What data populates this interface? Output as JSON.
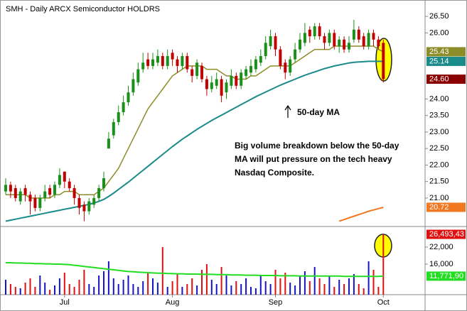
{
  "chart_data": {
    "type": "candlestick",
    "title": "SMH - Daily  ARCX  Semiconductor HOLDRS",
    "categories": [
      null,
      null,
      null,
      null,
      null,
      null,
      null,
      null,
      null,
      null,
      null,
      null,
      "Jul",
      null,
      null,
      null,
      null,
      null,
      null,
      null,
      null,
      null,
      null,
      null,
      null,
      null,
      null,
      null,
      null,
      null,
      null,
      null,
      null,
      null,
      "Aug",
      null,
      null,
      null,
      null,
      null,
      null,
      null,
      null,
      null,
      null,
      null,
      null,
      null,
      null,
      null,
      null,
      null,
      null,
      null,
      null,
      "Sep",
      null,
      null,
      null,
      null,
      null,
      null,
      null,
      null,
      null,
      null,
      null,
      null,
      null,
      null,
      null,
      null,
      null,
      null,
      null,
      null,
      null,
      "Oct"
    ],
    "price": {
      "open": [
        21.2,
        21.4,
        21.3,
        20.9,
        21.3,
        21.1,
        21.0,
        20.7,
        21.0,
        21.3,
        21.1,
        21.4,
        21.8,
        21.5,
        21.3,
        21.0,
        20.8,
        20.6,
        20.8,
        21.0,
        21.3,
        22.5,
        22.9,
        23.3,
        23.6,
        23.9,
        24.2,
        24.5,
        24.9,
        25.2,
        25.0,
        25.1,
        25.3,
        25.0,
        25.4,
        25.2,
        25.0,
        25.3,
        24.9,
        24.7,
        25.0,
        24.6,
        24.3,
        24.4,
        24.6,
        24.2,
        24.4,
        24.7,
        24.4,
        24.7,
        24.8,
        24.9,
        25.1,
        25.3,
        25.6,
        25.9,
        25.5,
        25.1,
        24.8,
        25.2,
        25.5,
        25.7,
        26.1,
        25.9,
        26.2,
        25.9,
        25.7,
        26.0,
        25.6,
        25.8,
        25.5,
        25.8,
        26.1,
        25.9,
        25.6,
        26.0,
        25.8,
        25.7
      ],
      "high": [
        21.6,
        21.5,
        21.4,
        21.3,
        21.4,
        21.2,
        21.1,
        21.1,
        21.4,
        21.4,
        21.5,
        21.9,
        21.8,
        21.6,
        21.4,
        21.1,
        20.9,
        21.0,
        21.1,
        21.4,
        21.8,
        23.0,
        23.4,
        23.8,
        24.1,
        24.4,
        24.8,
        25.1,
        25.4,
        25.4,
        25.4,
        25.5,
        25.4,
        25.5,
        25.5,
        25.3,
        25.4,
        25.4,
        25.0,
        25.2,
        25.1,
        24.7,
        24.7,
        24.8,
        24.7,
        24.6,
        24.9,
        24.8,
        24.9,
        25.0,
        25.2,
        25.3,
        25.5,
        25.9,
        26.1,
        26.0,
        25.6,
        25.2,
        25.3,
        25.7,
        26.0,
        26.3,
        26.2,
        26.3,
        26.3,
        26.0,
        26.1,
        26.1,
        25.9,
        25.9,
        25.9,
        26.4,
        26.2,
        26.0,
        26.1,
        26.1,
        25.9,
        25.8
      ],
      "low": [
        21.1,
        21.0,
        20.9,
        20.8,
        20.9,
        20.5,
        20.6,
        20.6,
        20.9,
        21.0,
        21.0,
        21.3,
        21.3,
        21.2,
        20.8,
        20.5,
        20.3,
        20.5,
        20.7,
        20.9,
        21.2,
        22.5,
        22.8,
        23.2,
        23.5,
        23.8,
        24.1,
        24.4,
        24.8,
        24.9,
        24.9,
        25.0,
        24.9,
        24.9,
        25.0,
        24.8,
        24.9,
        24.8,
        24.5,
        24.6,
        24.5,
        24.1,
        24.2,
        24.3,
        23.9,
        24.0,
        24.3,
        24.3,
        24.3,
        24.6,
        24.7,
        24.8,
        25.0,
        25.2,
        25.5,
        25.3,
        24.9,
        24.6,
        24.7,
        25.1,
        25.4,
        25.6,
        25.7,
        25.8,
        25.8,
        25.5,
        25.6,
        25.5,
        25.4,
        25.4,
        25.4,
        25.7,
        25.7,
        25.5,
        25.5,
        25.6,
        25.5,
        24.5
      ],
      "close": [
        21.4,
        21.2,
        21.0,
        21.2,
        21.1,
        20.9,
        20.7,
        21.0,
        21.2,
        21.1,
        21.4,
        21.7,
        21.5,
        21.3,
        21.0,
        20.7,
        20.6,
        20.9,
        21.0,
        21.3,
        21.6,
        22.8,
        23.3,
        23.6,
        23.9,
        24.2,
        24.6,
        24.9,
        25.1,
        25.0,
        25.2,
        25.3,
        25.0,
        25.3,
        25.2,
        25.0,
        25.3,
        24.9,
        24.7,
        25.1,
        24.6,
        24.3,
        24.5,
        24.6,
        24.1,
        24.5,
        24.7,
        24.4,
        24.8,
        24.9,
        25.0,
        25.2,
        25.3,
        25.7,
        25.9,
        25.5,
        25.0,
        24.8,
        25.2,
        25.5,
        25.8,
        26.0,
        25.9,
        26.2,
        25.9,
        25.7,
        26.0,
        25.6,
        25.8,
        25.5,
        25.7,
        26.1,
        25.8,
        25.6,
        26.0,
        25.8,
        25.6,
        24.6
      ],
      "up_color": "#1a8f1a",
      "down_color": "#c00000",
      "last_label": "24.60",
      "last_label_color": "#8b0000"
    },
    "lines": [
      {
        "color": "#8c8c28",
        "values": [
          21.1,
          21.1,
          21.1,
          21.1,
          21.1,
          21.0,
          21.0,
          21.0,
          21.0,
          21.0,
          21.1,
          21.1,
          21.2,
          21.2,
          21.2,
          21.1,
          21.1,
          21.1,
          21.1,
          21.2,
          21.3,
          21.5,
          21.7,
          21.9,
          22.2,
          22.5,
          22.8,
          23.1,
          23.4,
          23.7,
          23.9,
          24.1,
          24.3,
          24.5,
          24.7,
          24.8,
          24.9,
          25.0,
          25.0,
          25.0,
          25.0,
          24.9,
          24.9,
          24.9,
          24.8,
          24.7,
          24.7,
          24.6,
          24.6,
          24.6,
          24.7,
          24.7,
          24.8,
          24.9,
          25.0,
          25.0,
          25.0,
          25.0,
          25.0,
          25.1,
          25.2,
          25.3,
          25.4,
          25.5,
          25.5,
          25.5,
          25.5,
          25.6,
          25.6,
          25.6,
          25.6,
          25.6,
          25.6,
          25.6,
          25.6,
          25.6,
          25.5,
          25.43
        ]
      },
      {
        "color": "#1a8a8a",
        "values": [
          20.3,
          20.33,
          20.36,
          20.39,
          20.42,
          20.45,
          20.48,
          20.51,
          20.54,
          20.57,
          20.6,
          20.63,
          20.66,
          20.69,
          20.72,
          20.75,
          20.78,
          20.81,
          20.85,
          20.9,
          20.96,
          21.05,
          21.15,
          21.26,
          21.37,
          21.48,
          21.6,
          21.72,
          21.84,
          21.96,
          22.08,
          22.2,
          22.32,
          22.44,
          22.56,
          22.67,
          22.78,
          22.88,
          22.98,
          23.08,
          23.17,
          23.26,
          23.35,
          23.43,
          23.51,
          23.59,
          23.67,
          23.75,
          23.83,
          23.91,
          23.99,
          24.07,
          24.14,
          24.21,
          24.28,
          24.35,
          24.42,
          24.48,
          24.54,
          24.6,
          24.66,
          24.72,
          24.77,
          24.82,
          24.87,
          24.92,
          24.96,
          25.0,
          25.03,
          25.06,
          25.09,
          25.11,
          25.12,
          25.13,
          25.14,
          25.14,
          25.14,
          25.14
        ]
      },
      {
        "color": "#f07820",
        "values": [
          null,
          null,
          null,
          null,
          null,
          null,
          null,
          null,
          null,
          null,
          null,
          null,
          null,
          null,
          null,
          null,
          null,
          null,
          null,
          null,
          null,
          null,
          null,
          null,
          null,
          null,
          null,
          null,
          null,
          null,
          null,
          null,
          null,
          null,
          null,
          null,
          null,
          null,
          null,
          null,
          null,
          null,
          null,
          null,
          null,
          null,
          null,
          null,
          null,
          null,
          null,
          null,
          null,
          null,
          null,
          null,
          null,
          null,
          null,
          null,
          null,
          null,
          null,
          null,
          null,
          null,
          null,
          null,
          20.3,
          20.35,
          20.4,
          20.45,
          20.5,
          20.55,
          20.6,
          20.64,
          20.68,
          20.72
        ]
      }
    ],
    "ylim": [
      20.16,
      26.89
    ],
    "yticks": [
      {
        "value": 21,
        "label": "21.00"
      },
      {
        "value": 21.5,
        "label": "21.50"
      },
      {
        "value": 22,
        "label": "22.00"
      },
      {
        "value": 22.5,
        "label": "22.50"
      },
      {
        "value": 23,
        "label": "23.00"
      },
      {
        "value": 23.5,
        "label": "23.50"
      },
      {
        "value": 24,
        "label": "24.00"
      },
      {
        "value": 26,
        "label": "26.00"
      },
      {
        "value": 26.5,
        "label": "26.50"
      }
    ],
    "volume": {
      "values": [
        10500,
        9000,
        8000,
        7500,
        9500,
        11000,
        8000,
        12000,
        9500,
        7000,
        8500,
        11000,
        13000,
        9000,
        8000,
        10500,
        14000,
        9000,
        8000,
        12000,
        13500,
        17000,
        11000,
        9000,
        10500,
        12000,
        9000,
        8000,
        10000,
        13000,
        11000,
        9500,
        22000,
        8000,
        10000,
        12500,
        8000,
        9000,
        11000,
        8500,
        14000,
        16000,
        10500,
        9000,
        15000,
        12000,
        8500,
        10000,
        9000,
        11000,
        8000,
        7500,
        12000,
        10000,
        9000,
        14000,
        11000,
        13000,
        9500,
        8500,
        12000,
        13500,
        10000,
        15000,
        11000,
        9000,
        12000,
        8000,
        10500,
        9000,
        11000,
        12500,
        9000,
        7500,
        17000,
        14000,
        8000,
        26493.43
      ],
      "up_color": "#1515c8",
      "down_color": "#e01010",
      "last_label": "26,493,43",
      "ylim": [
        5250,
        28500
      ],
      "yticks": [
        {
          "value": 16000,
          "label": "16,000"
        },
        {
          "value": 22000,
          "label": "22,000"
        }
      ],
      "ma": {
        "color": "#22dd22",
        "last_label": "11,771,90",
        "values": [
          16500,
          16500,
          16400,
          16400,
          16300,
          16300,
          16200,
          16200,
          16100,
          16100,
          16000,
          16000,
          15900,
          15800,
          15600,
          15400,
          15200,
          15000,
          14800,
          14600,
          14400,
          14200,
          14000,
          13800,
          13600,
          13400,
          13300,
          13200,
          13100,
          13000,
          12900,
          12800,
          12800,
          12700,
          12700,
          12600,
          12600,
          12500,
          12500,
          12500,
          12400,
          12400,
          12400,
          12300,
          12300,
          12300,
          12200,
          12200,
          12200,
          12100,
          12100,
          12100,
          12000,
          12000,
          12000,
          12000,
          11900,
          11900,
          11900,
          11900,
          11800,
          11800,
          11800,
          11800,
          11800,
          11800,
          11800,
          11800,
          11800,
          11700,
          11700,
          11700,
          11700,
          11700,
          11700,
          11700,
          11700,
          11771.9
        ]
      }
    },
    "annotations": [
      "Big volume breakdown below the 50-day",
      "MA will put pressure on the tech heavy",
      "Nasdaq Composite."
    ],
    "arrow_label": "50-day MA"
  }
}
